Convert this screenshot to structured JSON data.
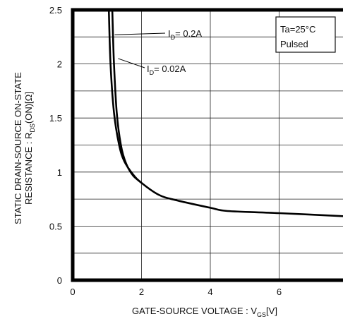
{
  "chart_data": {
    "type": "line",
    "xlabel_main": "GATE-SOURCE VOLTAGE : V",
    "xlabel_sub": "GS",
    "xlabel_tail": "[V]",
    "ylabel_line1": "STATIC DRAIN-SOURCE ON-STATE",
    "ylabel_line2_main": "RESISTANCE : R",
    "ylabel_line2_sub": "DS",
    "ylabel_line2_tail": "(ON)[Ω]",
    "xlim": [
      0,
      8
    ],
    "ylim": [
      0,
      2.5
    ],
    "x_ticks": [
      "0",
      "2",
      "4",
      "6"
    ],
    "y_ticks": [
      "0",
      "0.5",
      "1",
      "1.5",
      "2",
      "2.5"
    ],
    "grid": true,
    "legend_box_line1": "Ta=25°C",
    "legend_box_line2": "Pulsed",
    "series": [
      {
        "label_main": "I",
        "label_sub": "D",
        "label_tail": "= 0.2A",
        "x": [
          1.05,
          1.1,
          1.2,
          1.35,
          1.5,
          1.75,
          2.0,
          2.5,
          3.0,
          4.0,
          4.5,
          6.0,
          8.0
        ],
        "y": [
          2.5,
          2.0,
          1.55,
          1.25,
          1.1,
          0.98,
          0.9,
          0.79,
          0.74,
          0.67,
          0.64,
          0.62,
          0.59
        ]
      },
      {
        "label_main": "I",
        "label_sub": "D",
        "label_tail": "= 0.02A",
        "x": [
          1.15,
          1.2,
          1.28,
          1.4,
          1.55,
          1.75,
          2.0
        ],
        "y": [
          2.5,
          2.0,
          1.55,
          1.25,
          1.08,
          0.97,
          0.9
        ]
      }
    ]
  }
}
